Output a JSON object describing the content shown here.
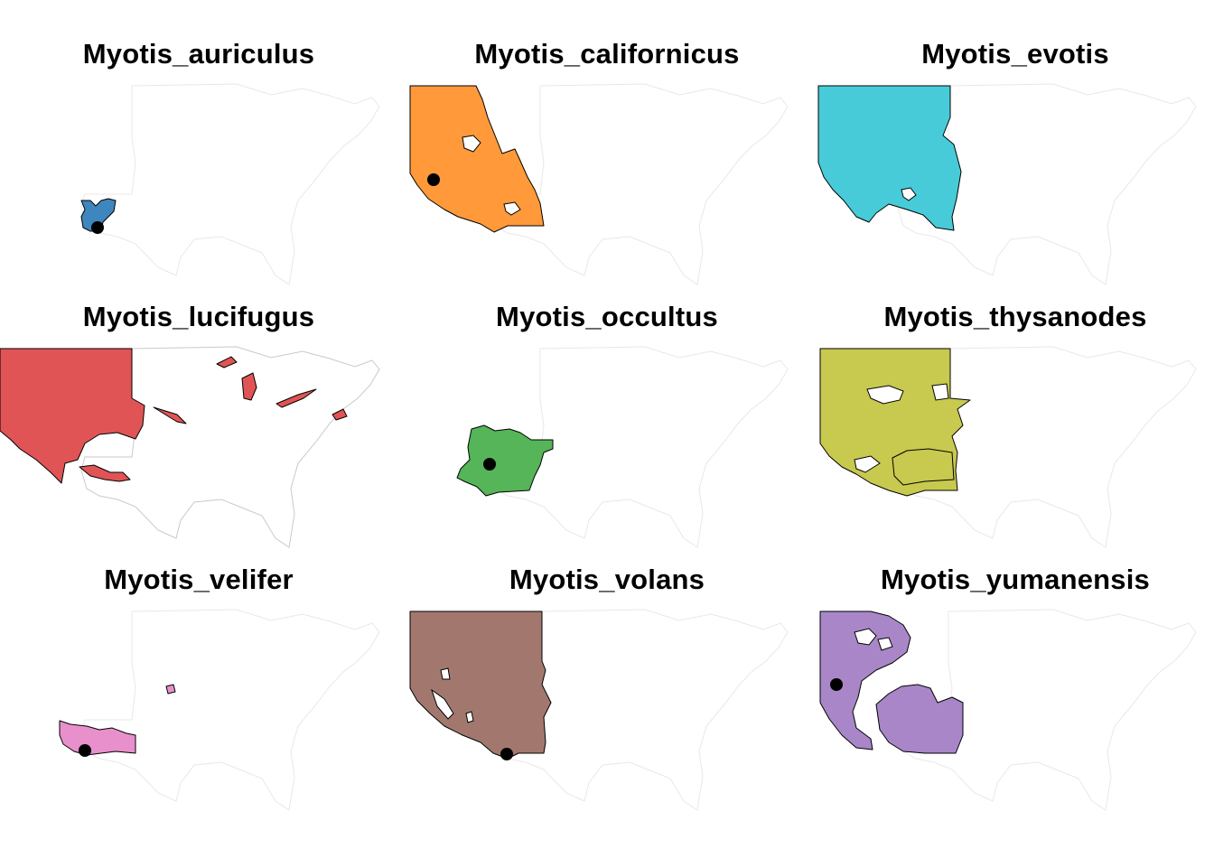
{
  "figure": {
    "panels": [
      {
        "species": "Myotis_auriculus",
        "range_color": "#3E86BE"
      },
      {
        "species": "Myotis_californicus",
        "range_color": "#FF993A"
      },
      {
        "species": "Myotis_evotis",
        "range_color": "#47CBD8"
      },
      {
        "species": "Myotis_lucifugus",
        "range_color": "#E05456"
      },
      {
        "species": "Myotis_occultus",
        "range_color": "#55B558"
      },
      {
        "species": "Myotis_thysanodes",
        "range_color": "#C8C94F"
      },
      {
        "species": "Myotis_velifer",
        "range_color": "#E890CB"
      },
      {
        "species": "Myotis_volans",
        "range_color": "#A2786E"
      },
      {
        "species": "Myotis_yumanensis",
        "range_color": "#A886C8"
      }
    ]
  }
}
